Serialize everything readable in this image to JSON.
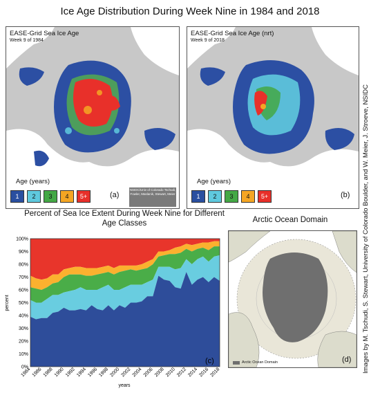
{
  "title": "Ice Age Distribution During Week Nine in 1984 and 2018",
  "map_a": {
    "title": "EASE-Grid Sea Ice Age",
    "subtitle": "Week 9 of 1984",
    "letter": "(a)",
    "credit": "NSIDC/Univ of Colorado Tschudi, Fowler, Maslanik, Stewart, Meier"
  },
  "map_b": {
    "title": "EASE-Grid Sea Ice Age (nrt)",
    "subtitle": "Week 9 of 2018",
    "letter": "(b)"
  },
  "age_legend": {
    "label": "Age (years)",
    "items": [
      "1",
      "2",
      "3",
      "4",
      "5+"
    ],
    "colors": [
      "#2a4fa0",
      "#5fc9de",
      "#44a845",
      "#f5a623",
      "#e8302a"
    ]
  },
  "domain": {
    "title": "Arctic Ocean Domain",
    "legend": "Arctic Ocean Domain",
    "letter": "(d)"
  },
  "side_credit": "Images by M. Tschudi, S. Stewart, University of Colorado Boulder, and W. Meier, J. Stroeve, NSIDC",
  "chart_data": {
    "type": "area",
    "title": "Percent of Sea Ice Extent During Week Nine for Different Age Classes",
    "xlabel": "years",
    "ylabel": "percent",
    "letter": "(c)",
    "xlim": [
      1984,
      2018
    ],
    "ylim": [
      0,
      100
    ],
    "xticks": [
      "1984",
      "1986",
      "1988",
      "1990",
      "1992",
      "1994",
      "1996",
      "1998",
      "2000",
      "2002",
      "2004",
      "2006",
      "2008",
      "2010",
      "2012",
      "2014",
      "2016",
      "2018"
    ],
    "yticks": [
      "0%",
      "10%",
      "20%",
      "30%",
      "40%",
      "50%",
      "60%",
      "70%",
      "80%",
      "90%",
      "100%"
    ],
    "x": [
      1984,
      1985,
      1986,
      1987,
      1988,
      1989,
      1990,
      1991,
      1992,
      1993,
      1994,
      1995,
      1996,
      1997,
      1998,
      1999,
      2000,
      2001,
      2002,
      2003,
      2004,
      2005,
      2006,
      2007,
      2008,
      2009,
      2010,
      2011,
      2012,
      2013,
      2014,
      2015,
      2016,
      2017,
      2018
    ],
    "series_colors": [
      "#2e4d9a",
      "#69cde0",
      "#4aad48",
      "#fbb12f",
      "#e8352b"
    ],
    "cumulative_boundaries": [
      [
        39,
        37,
        38,
        38,
        42,
        43,
        46,
        44,
        44,
        45,
        44,
        48,
        45,
        44,
        48,
        44,
        48,
        46,
        50,
        50,
        51,
        55,
        55,
        71,
        68,
        67,
        62,
        61,
        74,
        64,
        68,
        70,
        66,
        70,
        67
      ],
      [
        52,
        50,
        50,
        53,
        56,
        56,
        58,
        59,
        60,
        62,
        60,
        60,
        60,
        62,
        64,
        60,
        60,
        62,
        64,
        64,
        64,
        66,
        68,
        78,
        78,
        78,
        76,
        77,
        84,
        80,
        84,
        86,
        82,
        86,
        87
      ],
      [
        62,
        61,
        60,
        62,
        65,
        66,
        70,
        72,
        72,
        72,
        71,
        71,
        72,
        73,
        74,
        72,
        74,
        75,
        76,
        75,
        76,
        77,
        80,
        86,
        87,
        88,
        88,
        89,
        92,
        90,
        92,
        93,
        91,
        94,
        94
      ],
      [
        71,
        69,
        68,
        69,
        72,
        72,
        76,
        77,
        78,
        78,
        77,
        77,
        77,
        78,
        79,
        77,
        79,
        79,
        79,
        79,
        80,
        82,
        84,
        90,
        90,
        91,
        93,
        94,
        96,
        95,
        96,
        97,
        97,
        98,
        98
      ],
      [
        100,
        100,
        100,
        100,
        100,
        100,
        100,
        100,
        100,
        100,
        100,
        100,
        100,
        100,
        100,
        100,
        100,
        100,
        100,
        100,
        100,
        100,
        100,
        100,
        100,
        100,
        100,
        100,
        100,
        100,
        100,
        100,
        100,
        100,
        100
      ]
    ]
  }
}
